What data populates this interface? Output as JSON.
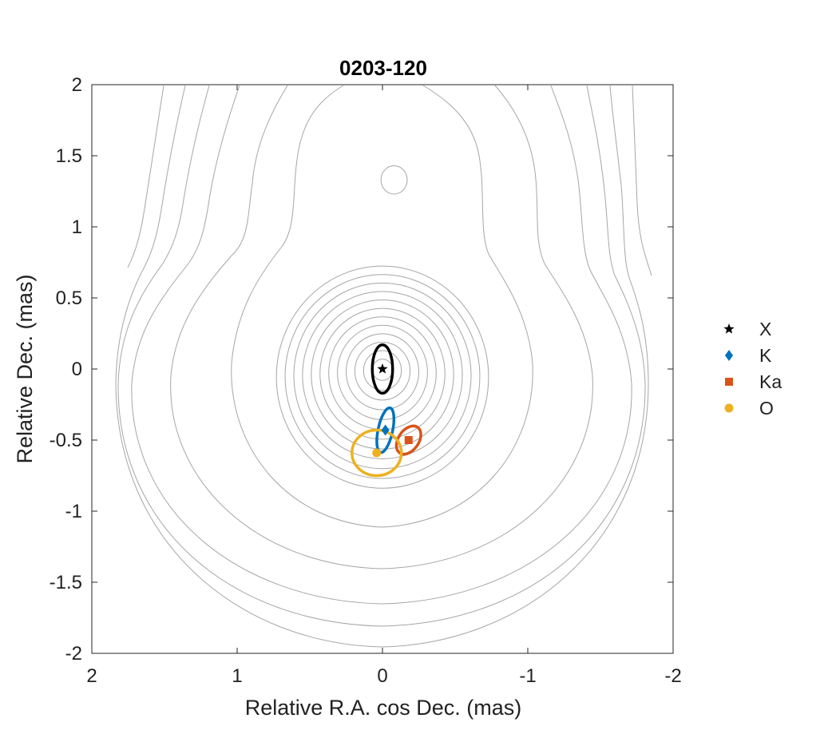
{
  "chart_data": {
    "type": "scatter",
    "title": "0203-120",
    "xlabel": "Relative R.A. cos Dec. (mas)",
    "ylabel": "Relative Dec. (mas)",
    "xlim": [
      2,
      -2
    ],
    "ylim": [
      -2,
      2
    ],
    "x_reversed": true,
    "xticks": [
      2,
      1,
      0,
      -1,
      -2
    ],
    "yticks": [
      2,
      1.5,
      1,
      0.5,
      0,
      -0.5,
      -1,
      -1.5,
      -2
    ],
    "xtick_labels": [
      "2",
      "1",
      "0",
      "-1",
      "-2"
    ],
    "ytick_labels": [
      "2",
      "1.5",
      "1",
      "0.5",
      "0",
      "-0.5",
      "-1",
      "-1.5",
      "-2"
    ],
    "grid": false,
    "legend_position": "outside-right",
    "contours": {
      "color": "#a6a6a6",
      "core_levels_rx": [
        0.07,
        0.13,
        0.19,
        0.25,
        0.31,
        0.37,
        0.43,
        0.49,
        0.55,
        0.61,
        0.67,
        0.73
      ],
      "secondary_component": {
        "x": -0.08,
        "y": 1.33,
        "rx": 0.09,
        "ry": 0.1
      }
    },
    "series": [
      {
        "name": "X",
        "marker": "star",
        "color": "#000000",
        "x": 0.0,
        "y": 0.0,
        "err_rx": 0.07,
        "err_ry": 0.17,
        "err_angle": 0
      },
      {
        "name": "K",
        "marker": "diamond",
        "color": "#0072BD",
        "x": -0.02,
        "y": -0.43,
        "err_rx": 0.05,
        "err_ry": 0.16,
        "err_angle": 12
      },
      {
        "name": "Ka",
        "marker": "square",
        "color": "#D95319",
        "x": -0.18,
        "y": -0.5,
        "err_rx": 0.07,
        "err_ry": 0.11,
        "err_angle": 35
      },
      {
        "name": "O",
        "marker": "circle",
        "color": "#EDB120",
        "x": 0.04,
        "y": -0.59,
        "err_rx": 0.17,
        "err_ry": 0.16,
        "err_angle": 0
      }
    ]
  }
}
